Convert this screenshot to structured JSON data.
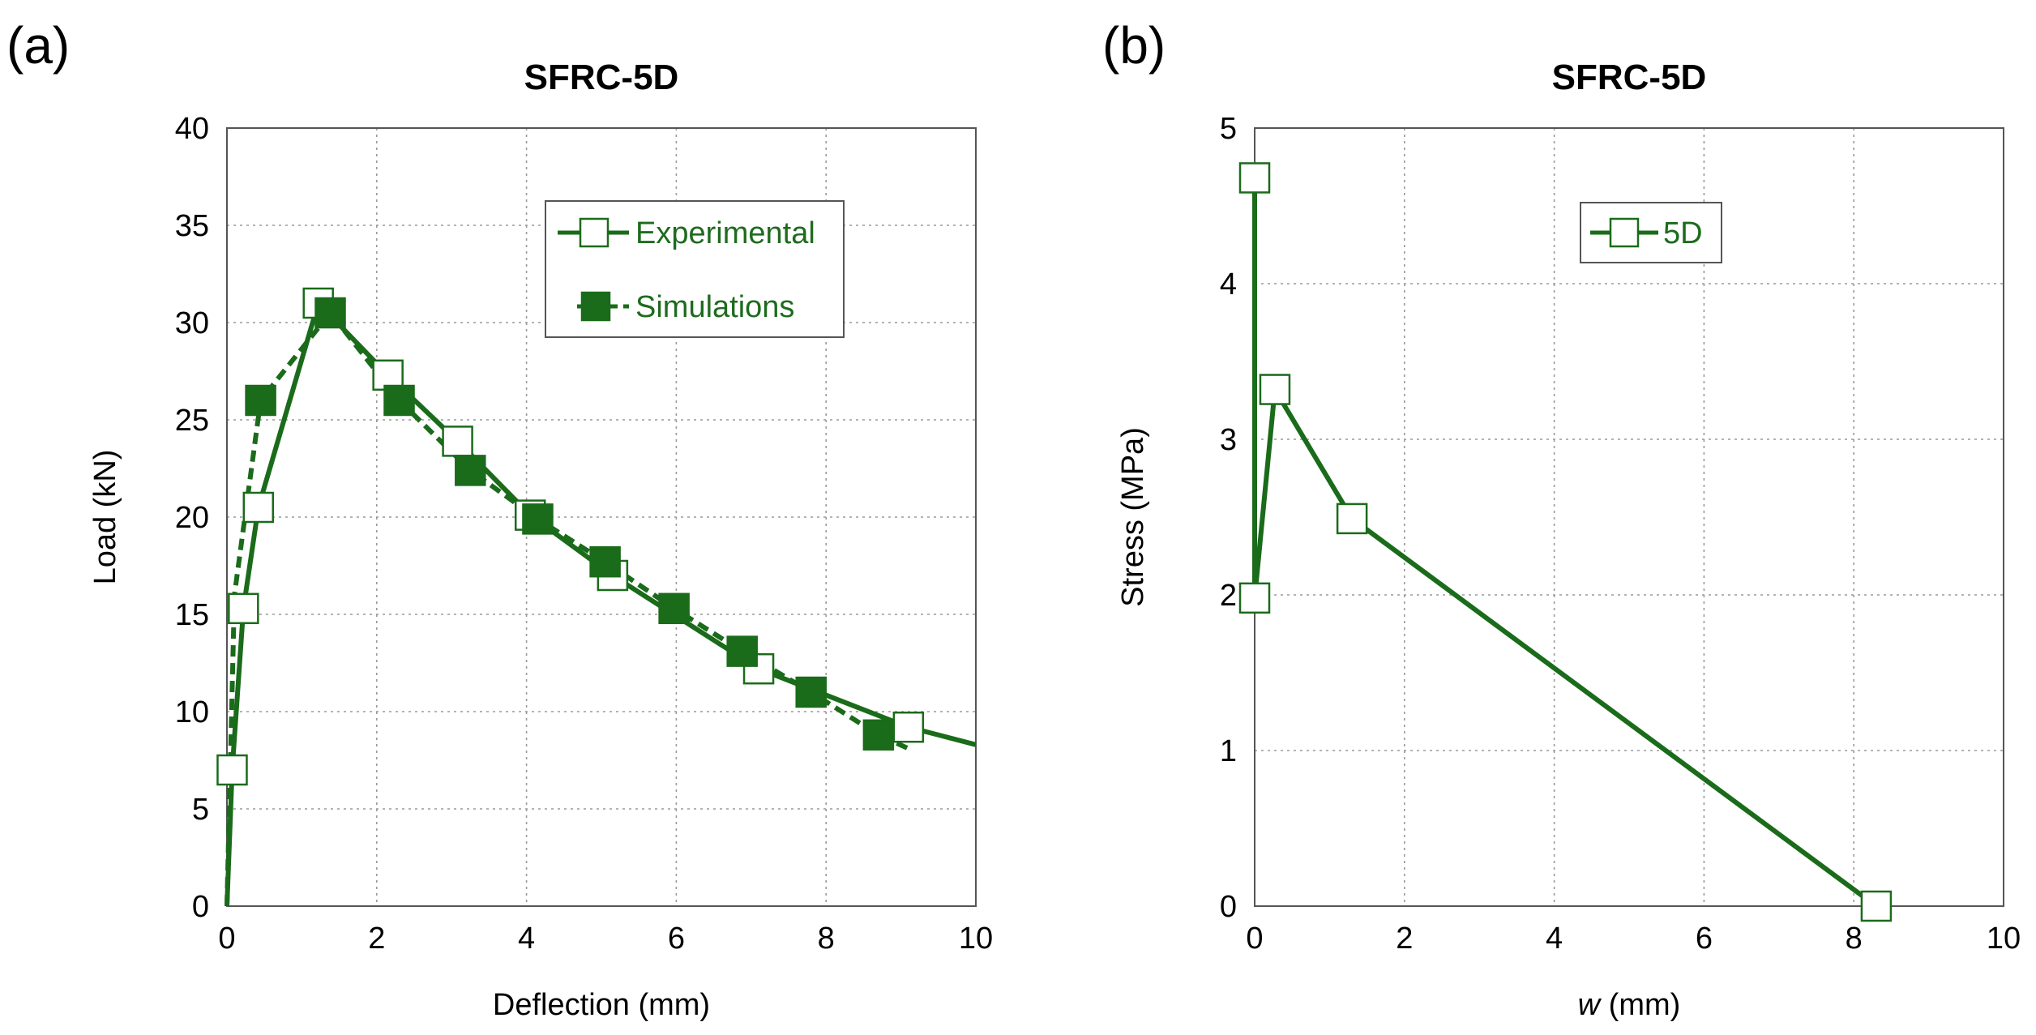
{
  "colors": {
    "series": "#1a6b1a",
    "frame": "#555555",
    "grid": "#9a9a9a"
  },
  "chart_data": [
    {
      "type": "line",
      "panel_label": "(a)",
      "title": "SFRC-5D",
      "xlabel": "Deflection (mm)",
      "ylabel": "Load (kN)",
      "xlim": [
        0,
        10
      ],
      "ylim": [
        0,
        40
      ],
      "xticks": [
        "0",
        "2",
        "4",
        "6",
        "8",
        "10"
      ],
      "yticks": [
        "0",
        "5",
        "10",
        "15",
        "20",
        "25",
        "30",
        "35",
        "40"
      ],
      "grid": true,
      "legend_position": "top-right",
      "series": [
        {
          "name": "Experimental",
          "line": "solid",
          "marker": "open-square",
          "x": [
            0,
            0.07,
            0.22,
            0.42,
            1.22,
            2.15,
            3.08,
            4.05,
            5.15,
            7.1,
            9.1,
            10.0
          ],
          "y": [
            0,
            7.0,
            15.3,
            20.5,
            31.0,
            27.3,
            23.9,
            20.1,
            17.0,
            12.2,
            9.2,
            8.3
          ],
          "marker_x": [
            0.07,
            0.22,
            0.42,
            1.22,
            2.15,
            3.08,
            4.05,
            5.15,
            7.1,
            9.1
          ],
          "marker_y": [
            7.0,
            15.3,
            20.5,
            31.0,
            27.3,
            23.9,
            20.1,
            17.0,
            12.2,
            9.2
          ]
        },
        {
          "name": "Simulations",
          "line": "dashed",
          "marker": "filled-square",
          "x": [
            0,
            0.1,
            0.45,
            1.38,
            2.3,
            3.25,
            4.15,
            5.05,
            5.97,
            6.88,
            7.8,
            8.7,
            9.1
          ],
          "y": [
            0,
            16.0,
            26.0,
            30.5,
            26.0,
            22.4,
            19.9,
            17.7,
            15.3,
            13.1,
            11.0,
            8.8,
            8.1
          ],
          "marker_x": [
            0.45,
            1.38,
            2.3,
            3.25,
            4.15,
            5.05,
            5.97,
            6.88,
            7.8,
            8.7
          ],
          "marker_y": [
            26.0,
            30.5,
            26.0,
            22.4,
            19.9,
            17.7,
            15.3,
            13.1,
            11.0,
            8.8
          ]
        }
      ]
    },
    {
      "type": "line",
      "panel_label": "(b)",
      "title": "SFRC-5D",
      "xlabel_italic": "w",
      "xlabel": " (mm)",
      "ylabel": "Stress (MPa)",
      "xlim": [
        0,
        10
      ],
      "ylim": [
        0,
        5
      ],
      "xticks": [
        "0",
        "2",
        "4",
        "6",
        "8",
        "10"
      ],
      "yticks": [
        "0",
        "1",
        "2",
        "3",
        "4",
        "5"
      ],
      "grid": true,
      "legend_position": "top-center",
      "series": [
        {
          "name": "5D",
          "line": "solid",
          "marker": "open-square",
          "x": [
            0,
            0.0,
            0.27,
            1.3,
            8.3
          ],
          "y": [
            4.68,
            1.98,
            3.32,
            2.49,
            0.0
          ],
          "marker_x": [
            0.0,
            0.0,
            0.27,
            1.3,
            8.3
          ],
          "marker_y": [
            4.68,
            1.98,
            3.32,
            2.49,
            0.0
          ]
        }
      ]
    }
  ]
}
